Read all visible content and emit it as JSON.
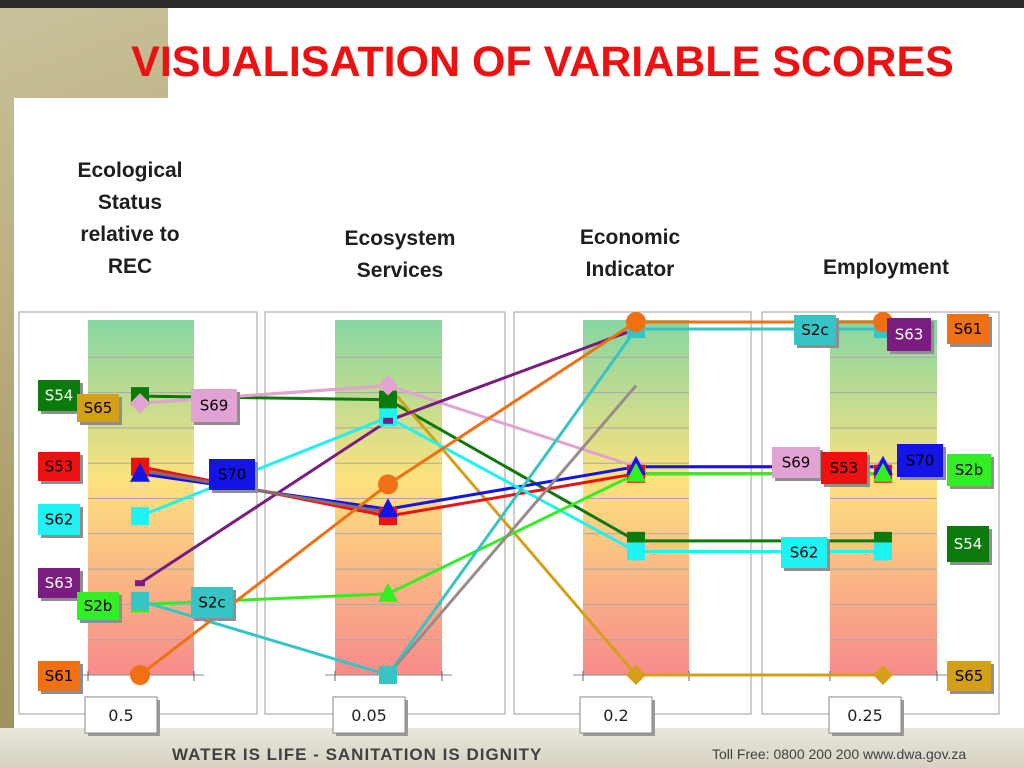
{
  "title": "VISUALISATION OF VARIABLE SCORES",
  "footer": {
    "left": "WATER IS LIFE - SANITATION IS DIGNITY",
    "right": "Toll Free: 0800 200 200      www.dwa.gov.za"
  },
  "chart_data": {
    "type": "line",
    "title": "VISUALISATION OF VARIABLE SCORES",
    "categories": [
      "Ecological Status relative to REC",
      "Ecosystem Services",
      "Economic Indicator",
      "Employment"
    ],
    "weights": [
      "0.5",
      "0.05",
      "0.2",
      "0.25"
    ],
    "ylim": [
      0,
      1
    ],
    "grid": true,
    "background": "vertical gradient green (top) to yellow to red (bottom)",
    "series": [
      {
        "name": "S54",
        "color": "#0a7a0a",
        "marker": "square",
        "values": [
          0.79,
          0.78,
          0.38,
          0.38
        ]
      },
      {
        "name": "S65",
        "color": "#d4a017",
        "marker": "diamond",
        "values": [
          0.77,
          0.82,
          0.0,
          0.0
        ]
      },
      {
        "name": "S69",
        "color": "#e2a3d4",
        "marker": "diamond",
        "values": [
          0.77,
          0.82,
          0.59,
          0.59
        ]
      },
      {
        "name": "S53",
        "color": "#ee1111",
        "marker": "square",
        "values": [
          0.59,
          0.45,
          0.57,
          0.57
        ]
      },
      {
        "name": "S70",
        "color": "#1414e6",
        "marker": "triangle",
        "values": [
          0.57,
          0.47,
          0.59,
          0.59
        ]
      },
      {
        "name": "S62",
        "color": "#1ff2f2",
        "marker": "square",
        "values": [
          0.45,
          0.73,
          0.35,
          0.35
        ]
      },
      {
        "name": "S63",
        "color": "#7b1c80",
        "marker": "dash",
        "values": [
          0.26,
          0.72,
          0.98,
          0.98
        ]
      },
      {
        "name": "S2b",
        "color": "#33ee22",
        "marker": "triangle",
        "values": [
          0.2,
          0.23,
          0.57,
          0.57
        ]
      },
      {
        "name": "S2c",
        "color": "#36c4c4",
        "marker": "square",
        "values": [
          0.21,
          0.0,
          0.98,
          0.98
        ]
      },
      {
        "name": "S61",
        "color": "#f07014",
        "marker": "circle",
        "values": [
          0.0,
          0.54,
          1.0,
          1.0
        ]
      },
      {
        "name": "",
        "color": "#8c6a6a",
        "marker": "none",
        "values": [
          0.58,
          0.46,
          null,
          null
        ]
      },
      {
        "name": "",
        "color": "#9a8a8a",
        "marker": "none",
        "values": [
          null,
          0.0,
          0.82,
          null
        ]
      }
    ],
    "labels": [
      {
        "text": "S54",
        "panel": 0,
        "side": "left",
        "fill": "#0a7a0a",
        "textColor": "#ffffff"
      },
      {
        "text": "S65",
        "panel": 0,
        "side": "left",
        "fill": "#d4a017",
        "textColor": "#000000"
      },
      {
        "text": "S69",
        "panel": 0,
        "side": "right",
        "fill": "#e2a3d4",
        "textColor": "#000000"
      },
      {
        "text": "S53",
        "panel": 0,
        "side": "left",
        "fill": "#ee1111",
        "textColor": "#000000"
      },
      {
        "text": "S70",
        "panel": 0,
        "side": "right",
        "fill": "#1414e6",
        "textColor": "#000000"
      },
      {
        "text": "S62",
        "panel": 0,
        "side": "left",
        "fill": "#1ff2f2",
        "textColor": "#000000"
      },
      {
        "text": "S63",
        "panel": 0,
        "side": "left",
        "fill": "#7b1c80",
        "textColor": "#ffffff"
      },
      {
        "text": "S2b",
        "panel": 0,
        "side": "left",
        "fill": "#33ee22",
        "textColor": "#000000"
      },
      {
        "text": "S2c",
        "panel": 0,
        "side": "right",
        "fill": "#36c4c4",
        "textColor": "#000000"
      },
      {
        "text": "S61",
        "panel": 0,
        "side": "left",
        "fill": "#f07014",
        "textColor": "#000000"
      },
      {
        "text": "S2c",
        "panel": 3,
        "side": "left",
        "fill": "#36c4c4",
        "textColor": "#000000"
      },
      {
        "text": "S63",
        "panel": 3,
        "side": "right",
        "fill": "#7b1c80",
        "textColor": "#ffffff"
      },
      {
        "text": "S61",
        "panel": 3,
        "side": "far",
        "fill": "#f07014",
        "textColor": "#000000"
      },
      {
        "text": "S69",
        "panel": 3,
        "side": "left",
        "fill": "#e2a3d4",
        "textColor": "#000000"
      },
      {
        "text": "S53",
        "panel": 3,
        "side": "right",
        "fill": "#ee1111",
        "textColor": "#000000"
      },
      {
        "text": "S70",
        "panel": 3,
        "side": "right",
        "fill": "#1414e6",
        "textColor": "#000000"
      },
      {
        "text": "S2b",
        "panel": 3,
        "side": "far",
        "fill": "#33ee22",
        "textColor": "#000000"
      },
      {
        "text": "S62",
        "panel": 3,
        "side": "left",
        "fill": "#1ff2f2",
        "textColor": "#000000"
      },
      {
        "text": "S54",
        "panel": 3,
        "side": "far",
        "fill": "#0a7a0a",
        "textColor": "#ffffff"
      },
      {
        "text": "S65",
        "panel": 3,
        "side": "far",
        "fill": "#d4a017",
        "textColor": "#000000"
      }
    ]
  }
}
